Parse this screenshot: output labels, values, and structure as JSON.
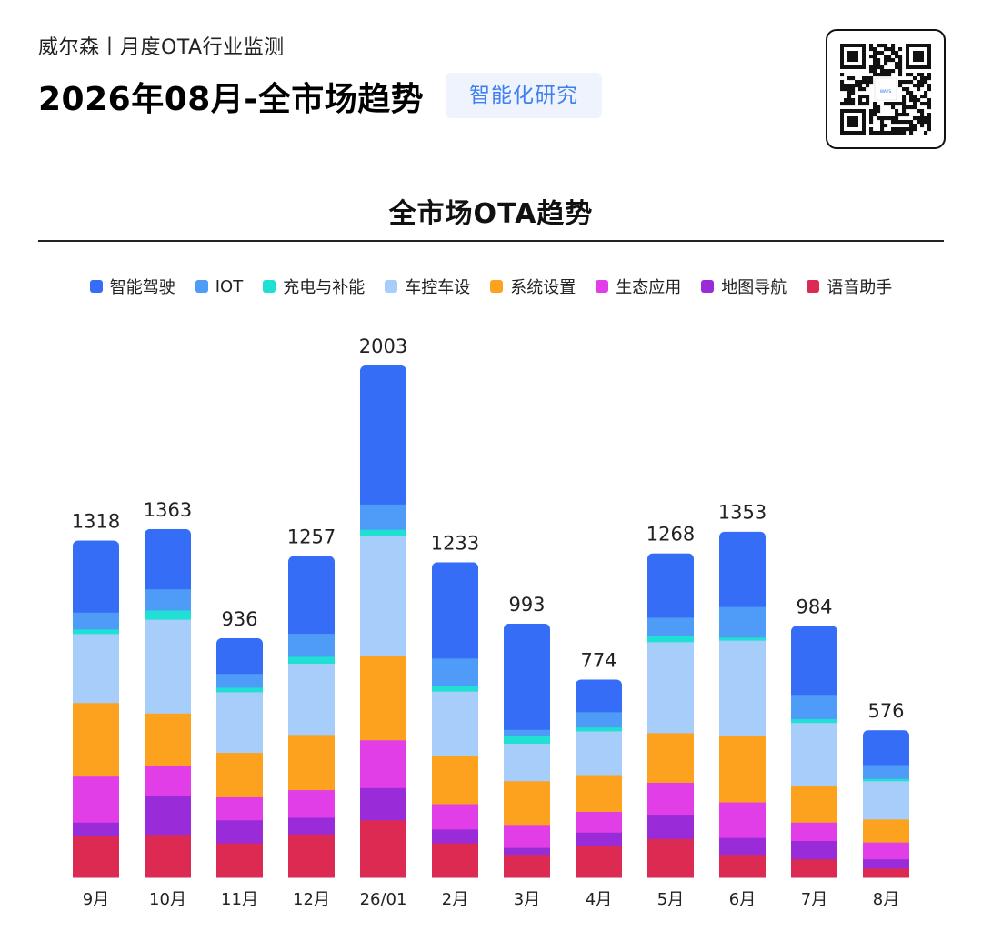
{
  "header": {
    "subtitle": "威尔森丨月度OTA行业监测",
    "title": "2026年08月-全市场趋势",
    "tag": "智能化研究",
    "qr_logo_text": "WAYS"
  },
  "chart_data": {
    "type": "bar",
    "stacked": true,
    "title": "全市场OTA趋势",
    "xlabel": "",
    "ylabel": "",
    "legend_position": "top",
    "grid": false,
    "ylim": [
      0,
      2100
    ],
    "categories": [
      "9月",
      "10月",
      "11月",
      "12月",
      "26/01",
      "2月",
      "3月",
      "4月",
      "5月",
      "6月",
      "7月",
      "8月"
    ],
    "totals": [
      1318,
      1363,
      936,
      1257,
      2003,
      1233,
      993,
      774,
      1268,
      1353,
      984,
      576
    ],
    "series": [
      {
        "name": "语音助手",
        "color": "#dc2a52",
        "values": [
          162,
          168,
          135,
          170,
          225,
          135,
          90,
          123,
          152,
          90,
          72,
          36
        ]
      },
      {
        "name": "地图导航",
        "color": "#9a2bd8",
        "values": [
          54,
          151,
          90,
          65,
          126,
          54,
          27,
          54,
          95,
          66,
          72,
          36
        ]
      },
      {
        "name": "生态应用",
        "color": "#e23ee8",
        "values": [
          180,
          119,
          90,
          108,
          187,
          99,
          90,
          81,
          125,
          139,
          72,
          66
        ]
      },
      {
        "name": "系统设置",
        "color": "#fca21f",
        "values": [
          288,
          205,
          174,
          216,
          331,
          189,
          171,
          144,
          194,
          261,
          144,
          90
        ]
      },
      {
        "name": "车控车设",
        "color": "#a7cefa",
        "values": [
          270,
          367,
          237,
          279,
          469,
          252,
          147,
          171,
          356,
          372,
          246,
          150
        ]
      },
      {
        "name": "充电与补能",
        "color": "#1fe0d2",
        "values": [
          18,
          36,
          18,
          27,
          24,
          22,
          30,
          15,
          24,
          12,
          15,
          9
        ]
      },
      {
        "name": "IOT",
        "color": "#4f9bf8",
        "values": [
          66,
          83,
          54,
          90,
          99,
          107,
          24,
          60,
          72,
          120,
          95,
          54
        ]
      },
      {
        "name": "智能驾驶",
        "color": "#356df7",
        "values": [
          280,
          234,
          138,
          302,
          542,
          375,
          414,
          126,
          250,
          293,
          268,
          135
        ]
      }
    ]
  }
}
